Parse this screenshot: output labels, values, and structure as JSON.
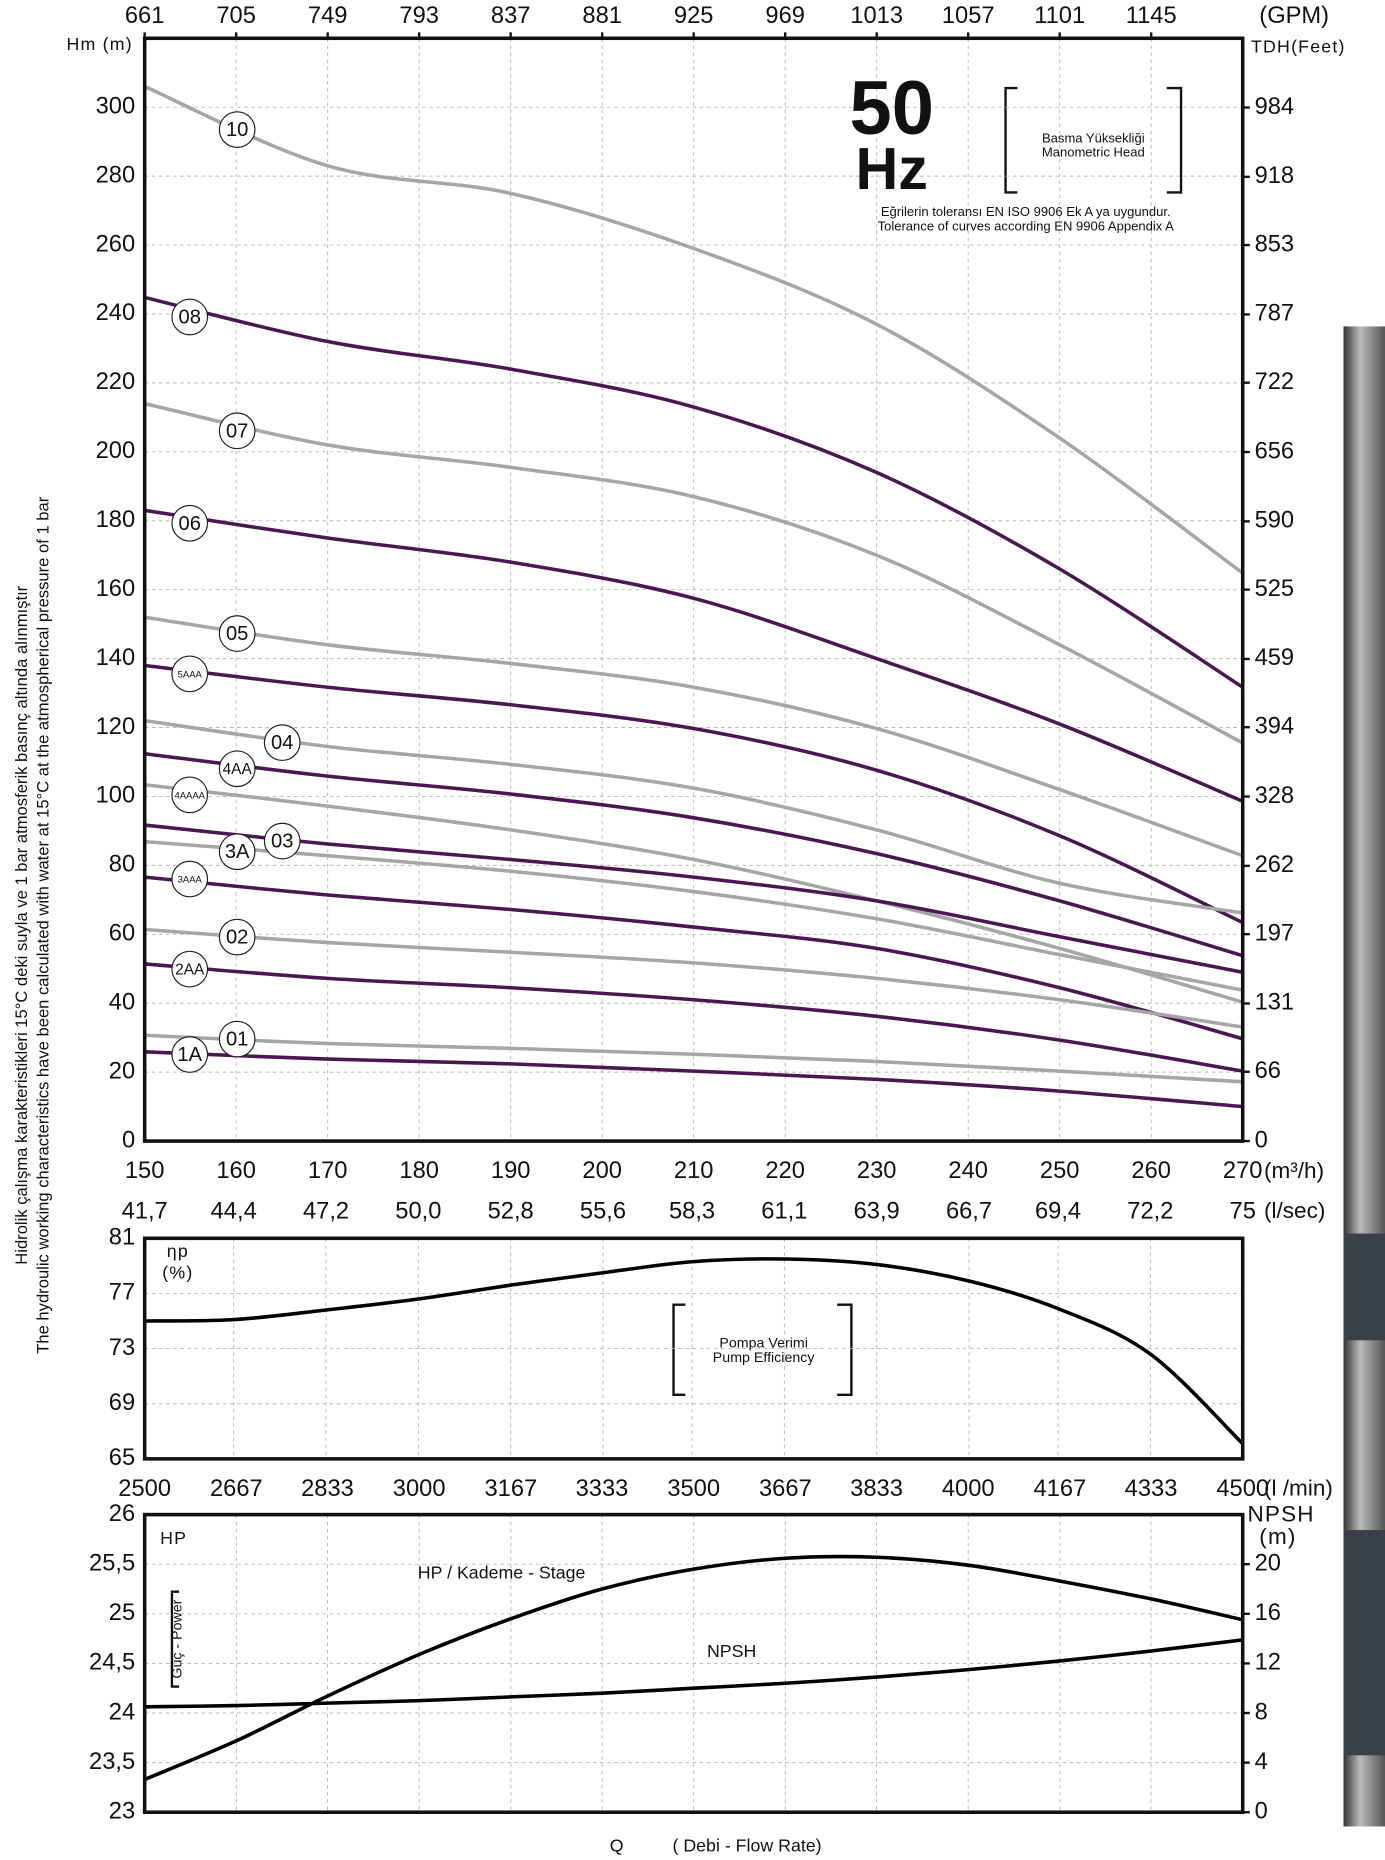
{
  "chart_data": [
    {
      "type": "line",
      "x": [
        150,
        170,
        190,
        210,
        230,
        250,
        270
      ],
      "xlim": [
        150,
        270
      ],
      "xticks": [
        150,
        160,
        170,
        180,
        190,
        200,
        210,
        220,
        230,
        240,
        250,
        260,
        270
      ],
      "xlabel": "(m³/h)",
      "x2lim": [
        661,
        1189
      ],
      "x2ticks": [
        661,
        705,
        749,
        793,
        837,
        881,
        925,
        969,
        1013,
        1057,
        1101,
        1145
      ],
      "x2label": "(GPM)",
      "ylim": [
        0,
        320
      ],
      "yticks": [
        0,
        20,
        40,
        60,
        80,
        100,
        120,
        140,
        160,
        180,
        200,
        220,
        240,
        260,
        280,
        300
      ],
      "ylabel": "Hm (m)",
      "y2lim": [
        0,
        1049.9
      ],
      "y2ticks": [
        0,
        66,
        131,
        197,
        262,
        328,
        394,
        459,
        525,
        590,
        656,
        722,
        787,
        853,
        918,
        984
      ],
      "y2label": "TDH(Feet)",
      "grid": true,
      "series": [
        {
          "name": "10",
          "color": "#a6a6a6",
          "values": [
            306,
            283,
            275,
            259,
            237,
            204,
            164.8
          ]
        },
        {
          "name": "08",
          "color": "#4a1850",
          "values": [
            244.8,
            232,
            224,
            213,
            194,
            166,
            131.7
          ]
        },
        {
          "name": "07",
          "color": "#a6a6a6",
          "values": [
            214,
            202,
            195.5,
            187,
            170,
            144,
            115.5
          ]
        },
        {
          "name": "06",
          "color": "#4a1850",
          "values": [
            183,
            175,
            168,
            157.5,
            140,
            121,
            98.6
          ]
        },
        {
          "name": "05",
          "color": "#a6a6a6",
          "values": [
            152,
            144,
            138.6,
            131.7,
            119.7,
            102,
            82.8
          ]
        },
        {
          "name": "5AAA",
          "color": "#4a1850",
          "values": [
            138,
            131.7,
            126.6,
            119.7,
            107.6,
            88.6,
            63.4
          ]
        },
        {
          "name": "04",
          "color": "#a6a6a6",
          "values": [
            122,
            114.5,
            109.3,
            102.4,
            90.3,
            74.8,
            66.2
          ]
        },
        {
          "name": "4AA",
          "color": "#4a1850",
          "values": [
            112.4,
            105.9,
            100.7,
            93.8,
            83.4,
            69.7,
            53.8
          ]
        },
        {
          "name": "4AAAA",
          "color": "#a6a6a6",
          "values": [
            103.4,
            97.2,
            90.3,
            81.7,
            69.7,
            55.9,
            40.3
          ]
        },
        {
          "name": "03",
          "color": "#a6a6a6",
          "values": [
            86.9,
            82.8,
            78.3,
            72.4,
            64.5,
            54.1,
            43.8
          ]
        },
        {
          "name": "3A",
          "color": "#4a1850",
          "values": [
            91.7,
            86.2,
            81.7,
            76.6,
            69.7,
            59.3,
            49
          ]
        },
        {
          "name": "3AAA",
          "color": "#4a1850",
          "values": [
            76.6,
            71.4,
            67.2,
            62.1,
            55.9,
            44.5,
            29.7
          ]
        },
        {
          "name": "02",
          "color": "#a6a6a6",
          "values": [
            61.4,
            57.6,
            54.8,
            51.7,
            47.2,
            41,
            33.1
          ]
        },
        {
          "name": "2AA",
          "color": "#4a1850",
          "values": [
            51.4,
            47.2,
            44.5,
            41,
            36.2,
            29.3,
            20.3
          ]
        },
        {
          "name": "01",
          "color": "#a6a6a6",
          "values": [
            30.7,
            28.3,
            26.9,
            25.2,
            23.1,
            20.3,
            17.2
          ]
        },
        {
          "name": "1A",
          "color": "#4a1850",
          "values": [
            25.9,
            23.8,
            22.4,
            20.3,
            17.9,
            14.5,
            10
          ]
        }
      ],
      "annotations": [
        "50",
        "Hz",
        "Basma Yüksekliği",
        "Manometric Head",
        "Eğrilerin toleransı EN ISO 9906 Ek A ya uygundur.",
        "Tolerance of curves according EN 9906 Appendix A"
      ]
    },
    {
      "type": "line",
      "x": [
        41.7,
        44.4,
        47.2,
        50,
        52.8,
        55.6,
        58.3,
        61.1,
        63.9,
        66.7,
        69.4,
        72.2,
        75
      ],
      "xlim": [
        41.7,
        75
      ],
      "xticks": [
        {
          "value": 41.7,
          "label": "41,7"
        },
        {
          "value": 44.4,
          "label": "44,4"
        },
        {
          "value": 47.2,
          "label": "47,2"
        },
        {
          "value": 50,
          "label": "50,0"
        },
        {
          "value": 52.8,
          "label": "52,8"
        },
        {
          "value": 55.6,
          "label": "55,6"
        },
        {
          "value": 58.3,
          "label": "58,3"
        },
        {
          "value": 61.1,
          "label": "61,1"
        },
        {
          "value": 63.9,
          "label": "63,9"
        },
        {
          "value": 66.7,
          "label": "66,7"
        },
        {
          "value": 69.4,
          "label": "69,4"
        },
        {
          "value": 72.2,
          "label": "72,2"
        },
        75
      ],
      "xlabel": "(l/sec)",
      "ylim": [
        65,
        81
      ],
      "yticks": [
        65,
        69,
        73,
        77,
        81
      ],
      "ylabel": [
        "ηp",
        "(%)"
      ],
      "grid": true,
      "series": [
        {
          "color": "#000000",
          "values": [
            75.0,
            75.1,
            75.8,
            76.6,
            77.6,
            78.5,
            79.3,
            79.5,
            79.1,
            77.9,
            75.9,
            72.6,
            66.1
          ]
        }
      ],
      "annotations": [
        "Pompa Verimi",
        "Pump Efficiency"
      ]
    },
    {
      "type": "line",
      "x": [
        2500,
        2667,
        2833,
        3000,
        3167,
        3333,
        3500,
        3667,
        3833,
        4000,
        4167,
        4333,
        4500
      ],
      "xlim": [
        2500,
        4500
      ],
      "xticks": [
        2500,
        2667,
        2833,
        3000,
        3167,
        3333,
        3500,
        3667,
        3833,
        4000,
        4167,
        4333,
        4500
      ],
      "xlabel": "(l /min)",
      "ylim": [
        23,
        26
      ],
      "yticks": [
        23,
        {
          "value": 23.5,
          "label": "23,5"
        },
        24,
        {
          "value": 24.5,
          "label": "24,5"
        },
        25,
        {
          "value": 25.5,
          "label": "25,5"
        },
        26
      ],
      "ylabel": "HP",
      "y2lim": [
        0,
        24
      ],
      "y2ticks": [
        0,
        4,
        8,
        12,
        16,
        20
      ],
      "y2label": [
        "NPSH",
        "(m)"
      ],
      "grid": true,
      "series": [
        {
          "color": "#000000",
          "values": [
            23.33,
            23.72,
            24.17,
            24.59,
            24.95,
            25.25,
            25.45,
            25.56,
            25.57,
            25.49,
            25.33,
            25.15,
            24.94
          ]
        },
        {
          "color": "#000000",
          "axis": "y2",
          "values": [
            8.5,
            8.6,
            8.8,
            9.0,
            9.3,
            9.6,
            10.0,
            10.4,
            10.9,
            11.5,
            12.2,
            13.0,
            13.9
          ]
        }
      ],
      "annotations": [
        "HP / Kademe - Stage",
        "NPSH",
        "Güç - Power"
      ]
    }
  ],
  "side_note": [
    "Hidrolik çalışma karakteristikleri 15°C deki suyla ve 1 bar atmosferik basınç altında alınmıştır",
    "The hydroulic working characteristics have been calculated with water at 15°C at the atmospherical pressure of 1 bar"
  ],
  "footer": [
    "Q",
    "( Debi - Flow Rate)"
  ]
}
